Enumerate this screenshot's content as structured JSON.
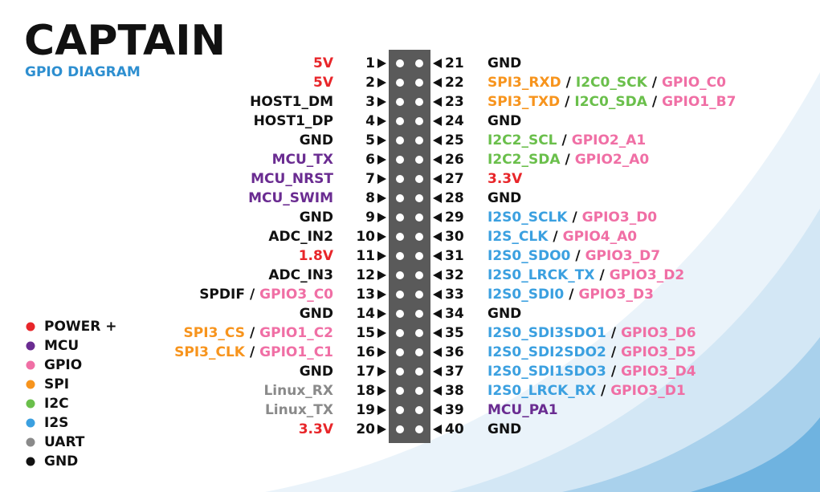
{
  "header": {
    "title": "CAPTAIN",
    "subtitle": "GPIO DIAGRAM"
  },
  "separator": "/",
  "legend": [
    {
      "label": "POWER +",
      "color": "#e8262a"
    },
    {
      "label": "MCU",
      "color": "#6a2c91"
    },
    {
      "label": "GPIO",
      "color": "#f06fa5"
    },
    {
      "label": "SPI",
      "color": "#f7941d"
    },
    {
      "label": "I2C",
      "color": "#6abf4b"
    },
    {
      "label": "I2S",
      "color": "#3ba0e0"
    },
    {
      "label": "UART",
      "color": "#8a8a8a"
    },
    {
      "label": "GND",
      "color": "#111111"
    }
  ],
  "pins": [
    {
      "left": {
        "pin": 1,
        "labels": [
          {
            "text": "5V",
            "color": "#e8262a"
          }
        ]
      },
      "right": {
        "pin": 21,
        "labels": [
          {
            "text": "GND",
            "color": "#111111"
          }
        ]
      }
    },
    {
      "left": {
        "pin": 2,
        "labels": [
          {
            "text": "5V",
            "color": "#e8262a"
          }
        ]
      },
      "right": {
        "pin": 22,
        "labels": [
          {
            "text": "SPI3_RXD",
            "color": "#f7941d"
          },
          {
            "text": "I2C0_SCK",
            "color": "#6abf4b"
          },
          {
            "text": "GPIO_C0",
            "color": "#f06fa5"
          }
        ]
      }
    },
    {
      "left": {
        "pin": 3,
        "labels": [
          {
            "text": "HOST1_DM",
            "color": "#111111"
          }
        ]
      },
      "right": {
        "pin": 23,
        "labels": [
          {
            "text": "SPI3_TXD",
            "color": "#f7941d"
          },
          {
            "text": "I2C0_SDA",
            "color": "#6abf4b"
          },
          {
            "text": "GPIO1_B7",
            "color": "#f06fa5"
          }
        ]
      }
    },
    {
      "left": {
        "pin": 4,
        "labels": [
          {
            "text": "HOST1_DP",
            "color": "#111111"
          }
        ]
      },
      "right": {
        "pin": 24,
        "labels": [
          {
            "text": "GND",
            "color": "#111111"
          }
        ]
      }
    },
    {
      "left": {
        "pin": 5,
        "labels": [
          {
            "text": "GND",
            "color": "#111111"
          }
        ]
      },
      "right": {
        "pin": 25,
        "labels": [
          {
            "text": "I2C2_SCL",
            "color": "#6abf4b"
          },
          {
            "text": "GPIO2_A1",
            "color": "#f06fa5"
          }
        ]
      }
    },
    {
      "left": {
        "pin": 6,
        "labels": [
          {
            "text": "MCU_TX",
            "color": "#6a2c91"
          }
        ]
      },
      "right": {
        "pin": 26,
        "labels": [
          {
            "text": "I2C2_SDA",
            "color": "#6abf4b"
          },
          {
            "text": "GPIO2_A0",
            "color": "#f06fa5"
          }
        ]
      }
    },
    {
      "left": {
        "pin": 7,
        "labels": [
          {
            "text": "MCU_NRST",
            "color": "#6a2c91"
          }
        ]
      },
      "right": {
        "pin": 27,
        "labels": [
          {
            "text": "3.3V",
            "color": "#e8262a"
          }
        ]
      }
    },
    {
      "left": {
        "pin": 8,
        "labels": [
          {
            "text": "MCU_SWIM",
            "color": "#6a2c91"
          }
        ]
      },
      "right": {
        "pin": 28,
        "labels": [
          {
            "text": "GND",
            "color": "#111111"
          }
        ]
      }
    },
    {
      "left": {
        "pin": 9,
        "labels": [
          {
            "text": "GND",
            "color": "#111111"
          }
        ]
      },
      "right": {
        "pin": 29,
        "labels": [
          {
            "text": "I2S0_SCLK",
            "color": "#3ba0e0"
          },
          {
            "text": "GPIO3_D0",
            "color": "#f06fa5"
          }
        ]
      }
    },
    {
      "left": {
        "pin": 10,
        "labels": [
          {
            "text": "ADC_IN2",
            "color": "#111111"
          }
        ]
      },
      "right": {
        "pin": 30,
        "labels": [
          {
            "text": "I2S_CLK",
            "color": "#3ba0e0"
          },
          {
            "text": "GPIO4_A0",
            "color": "#f06fa5"
          }
        ]
      }
    },
    {
      "left": {
        "pin": 11,
        "labels": [
          {
            "text": "1.8V",
            "color": "#e8262a"
          }
        ]
      },
      "right": {
        "pin": 31,
        "labels": [
          {
            "text": "I2S0_SDO0",
            "color": "#3ba0e0"
          },
          {
            "text": "GPIO3_D7",
            "color": "#f06fa5"
          }
        ]
      }
    },
    {
      "left": {
        "pin": 12,
        "labels": [
          {
            "text": "ADC_IN3",
            "color": "#111111"
          }
        ]
      },
      "right": {
        "pin": 32,
        "labels": [
          {
            "text": "I2S0_LRCK_TX",
            "color": "#3ba0e0"
          },
          {
            "text": "GPIO3_D2",
            "color": "#f06fa5"
          }
        ]
      }
    },
    {
      "left": {
        "pin": 13,
        "labels": [
          {
            "text": "SPDIF",
            "color": "#111111"
          },
          {
            "text": "GPIO3_C0",
            "color": "#f06fa5"
          }
        ]
      },
      "right": {
        "pin": 33,
        "labels": [
          {
            "text": "I2S0_SDI0",
            "color": "#3ba0e0"
          },
          {
            "text": "GPIO3_D3",
            "color": "#f06fa5"
          }
        ]
      }
    },
    {
      "left": {
        "pin": 14,
        "labels": [
          {
            "text": "GND",
            "color": "#111111"
          }
        ]
      },
      "right": {
        "pin": 34,
        "labels": [
          {
            "text": "GND",
            "color": "#111111"
          }
        ]
      }
    },
    {
      "left": {
        "pin": 15,
        "labels": [
          {
            "text": "SPI3_CS",
            "color": "#f7941d"
          },
          {
            "text": "GPIO1_C2",
            "color": "#f06fa5"
          }
        ]
      },
      "right": {
        "pin": 35,
        "labels": [
          {
            "text": "I2S0_SDI3SDO1",
            "color": "#3ba0e0"
          },
          {
            "text": "GPIO3_D6",
            "color": "#f06fa5"
          }
        ]
      }
    },
    {
      "left": {
        "pin": 16,
        "labels": [
          {
            "text": "SPI3_CLK",
            "color": "#f7941d"
          },
          {
            "text": "GPIO1_C1",
            "color": "#f06fa5"
          }
        ]
      },
      "right": {
        "pin": 36,
        "labels": [
          {
            "text": "I2S0_SDI2SDO2",
            "color": "#3ba0e0"
          },
          {
            "text": "GPIO3_D5",
            "color": "#f06fa5"
          }
        ]
      }
    },
    {
      "left": {
        "pin": 17,
        "labels": [
          {
            "text": "GND",
            "color": "#111111"
          }
        ]
      },
      "right": {
        "pin": 37,
        "labels": [
          {
            "text": "I2S0_SDI1SDO3",
            "color": "#3ba0e0"
          },
          {
            "text": "GPIO3_D4",
            "color": "#f06fa5"
          }
        ]
      }
    },
    {
      "left": {
        "pin": 18,
        "labels": [
          {
            "text": "Linux_RX",
            "color": "#8a8a8a"
          }
        ]
      },
      "right": {
        "pin": 38,
        "labels": [
          {
            "text": "I2S0_LRCK_RX",
            "color": "#3ba0e0"
          },
          {
            "text": "GPIO3_D1",
            "color": "#f06fa5"
          }
        ]
      }
    },
    {
      "left": {
        "pin": 19,
        "labels": [
          {
            "text": "Linux_TX",
            "color": "#8a8a8a"
          }
        ]
      },
      "right": {
        "pin": 39,
        "labels": [
          {
            "text": "MCU_PA1",
            "color": "#6a2c91"
          }
        ]
      }
    },
    {
      "left": {
        "pin": 20,
        "labels": [
          {
            "text": "3.3V",
            "color": "#e8262a"
          }
        ]
      },
      "right": {
        "pin": 40,
        "labels": [
          {
            "text": "GND",
            "color": "#111111"
          }
        ]
      }
    }
  ]
}
